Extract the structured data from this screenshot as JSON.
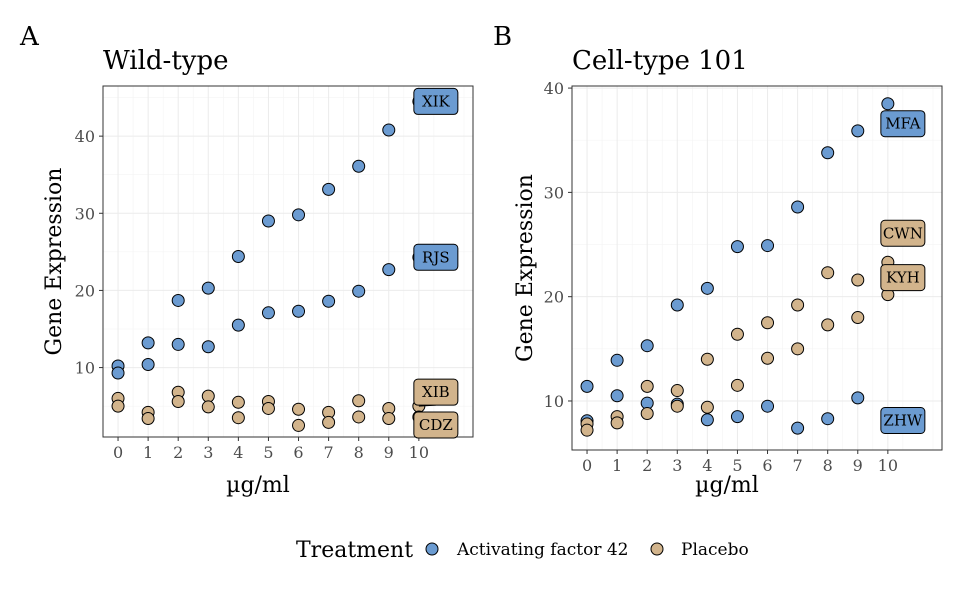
{
  "chart_data": [
    {
      "type": "scatter",
      "tag": "A",
      "title": "Wild-type",
      "xlabel": "µg/ml",
      "ylabel": "Gene Expression",
      "xlim": [
        -0.5,
        11.8
      ],
      "ylim": [
        1.0,
        46.5
      ],
      "xticks": [
        0,
        1,
        2,
        3,
        4,
        5,
        6,
        7,
        8,
        9,
        10
      ],
      "yticks": [
        10,
        20,
        30,
        40
      ],
      "grid": true,
      "series": [
        {
          "name": "Activating factor 42",
          "color": "#6b9bd1",
          "label": "XIK",
          "x": [
            0,
            1,
            2,
            3,
            4,
            5,
            6,
            7,
            8,
            9,
            10
          ],
          "y": [
            10.2,
            13.2,
            18.7,
            20.3,
            24.4,
            29.0,
            29.8,
            33.1,
            36.1,
            40.8,
            44.5
          ]
        },
        {
          "name": "Activating factor 42",
          "color": "#6b9bd1",
          "label": "RJS",
          "x": [
            0,
            1,
            2,
            3,
            4,
            5,
            6,
            7,
            8,
            9,
            10
          ],
          "y": [
            9.3,
            10.4,
            13.0,
            12.7,
            15.5,
            17.1,
            17.3,
            18.6,
            19.9,
            22.7,
            24.3
          ]
        },
        {
          "name": "Placebo",
          "color": "#d2b48c",
          "label": "XIB",
          "x": [
            0,
            1,
            2,
            3,
            4,
            5,
            6,
            7,
            8,
            9,
            10
          ],
          "y": [
            6.0,
            4.2,
            6.8,
            6.3,
            5.5,
            5.6,
            4.6,
            4.2,
            5.7,
            4.7,
            5.0
          ]
        },
        {
          "name": "Placebo",
          "color": "#d2b48c",
          "label": "CDZ",
          "x": [
            0,
            1,
            2,
            3,
            4,
            5,
            6,
            7,
            8,
            9,
            10
          ],
          "y": [
            5.0,
            3.4,
            5.6,
            4.9,
            3.5,
            4.7,
            2.5,
            2.9,
            3.6,
            3.4,
            3.6
          ]
        }
      ]
    },
    {
      "type": "scatter",
      "tag": "B",
      "title": "Cell-type 101",
      "xlabel": "µg/ml",
      "ylabel": "Gene Expression",
      "xlim": [
        -0.5,
        11.8
      ],
      "ylim": [
        5.3,
        40.2
      ],
      "xticks": [
        0,
        1,
        2,
        3,
        4,
        5,
        6,
        7,
        8,
        9,
        10
      ],
      "yticks": [
        10,
        20,
        30,
        40
      ],
      "grid": true,
      "series": [
        {
          "name": "Activating factor 42",
          "color": "#6b9bd1",
          "label": "MFA",
          "x": [
            0,
            1,
            2,
            3,
            4,
            5,
            6,
            7,
            8,
            9,
            10
          ],
          "y": [
            11.4,
            13.9,
            15.3,
            19.2,
            20.8,
            24.8,
            24.9,
            28.6,
            33.8,
            35.9,
            38.5
          ]
        },
        {
          "name": "Activating factor 42",
          "color": "#6b9bd1",
          "label": "ZHW",
          "x": [
            0,
            1,
            2,
            3,
            4,
            5,
            6,
            7,
            8,
            9,
            10
          ],
          "y": [
            8.1,
            10.5,
            9.8,
            9.7,
            8.2,
            8.5,
            9.5,
            7.4,
            8.3,
            10.3,
            8.8
          ]
        },
        {
          "name": "Placebo",
          "color": "#d2b48c",
          "label": "CWN",
          "x": [
            0,
            1,
            2,
            3,
            4,
            5,
            6,
            7,
            8,
            9,
            10
          ],
          "y": [
            7.8,
            8.5,
            11.4,
            11.0,
            14.0,
            16.4,
            17.5,
            19.2,
            22.3,
            21.6,
            23.3
          ]
        },
        {
          "name": "Placebo",
          "color": "#d2b48c",
          "label": "KYH",
          "x": [
            0,
            1,
            2,
            3,
            4,
            5,
            6,
            7,
            8,
            9,
            10
          ],
          "y": [
            7.2,
            7.9,
            8.8,
            9.5,
            9.4,
            11.5,
            14.1,
            15.0,
            17.3,
            18.0,
            20.2
          ]
        }
      ]
    }
  ],
  "legend": {
    "title": "Treatment",
    "placement": "bottom",
    "items": [
      {
        "label": "Activating factor 42",
        "color": "#6b9bd1"
      },
      {
        "label": "Placebo",
        "color": "#d2b48c"
      }
    ]
  }
}
